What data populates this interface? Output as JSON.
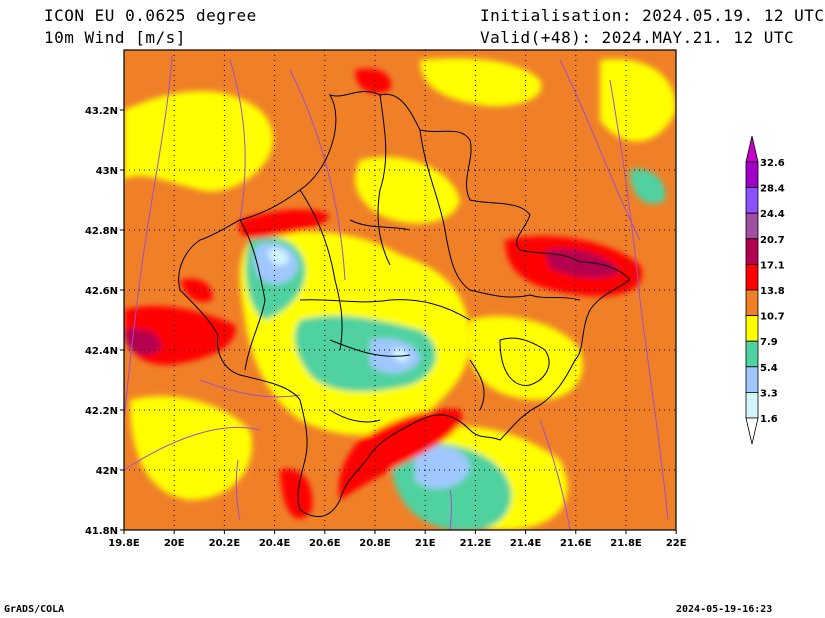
{
  "header": {
    "model": "ICON EU 0.0625 degree",
    "variable": "10m Wind [m/s]",
    "init": "Initialisation: 2024.05.19. 12 UTC",
    "valid": "Valid(+48): 2024.MAY.21. 12 UTC"
  },
  "footer": {
    "left": "GrADS/COLA",
    "right": "2024-05-19-16:23"
  },
  "map": {
    "x_ticks": [
      "19.8E",
      "20E",
      "20.2E",
      "20.4E",
      "20.6E",
      "20.8E",
      "21E",
      "21.2E",
      "21.4E",
      "21.6E",
      "21.8E",
      "22E"
    ],
    "y_ticks": [
      "43.2N",
      "43N",
      "42.8N",
      "42.6N",
      "42.4N",
      "42.2N",
      "42N",
      "41.8N"
    ]
  },
  "legend": {
    "levels": [
      "32.6",
      "28.4",
      "24.4",
      "20.7",
      "17.1",
      "13.8",
      "10.7",
      "7.9",
      "5.4",
      "3.3",
      "1.6"
    ],
    "colors": [
      "#a000c8",
      "#8c50ff",
      "#a050a0",
      "#b40050",
      "#ff0000",
      "#f08028",
      "#ffff00",
      "#50d2a0",
      "#a0c8ff",
      "#d2f5ff"
    ],
    "over_color": "#c800c8",
    "under_color": "#ffffff"
  },
  "colors": {
    "cyan": "#d2f5ff",
    "light_blue": "#a0c8ff",
    "green": "#50d2a0",
    "yellow": "#ffff00",
    "orange": "#f08028",
    "red": "#ff0000",
    "dark_red": "#b40050",
    "streamline": "#a050c8",
    "border": "#000000"
  }
}
